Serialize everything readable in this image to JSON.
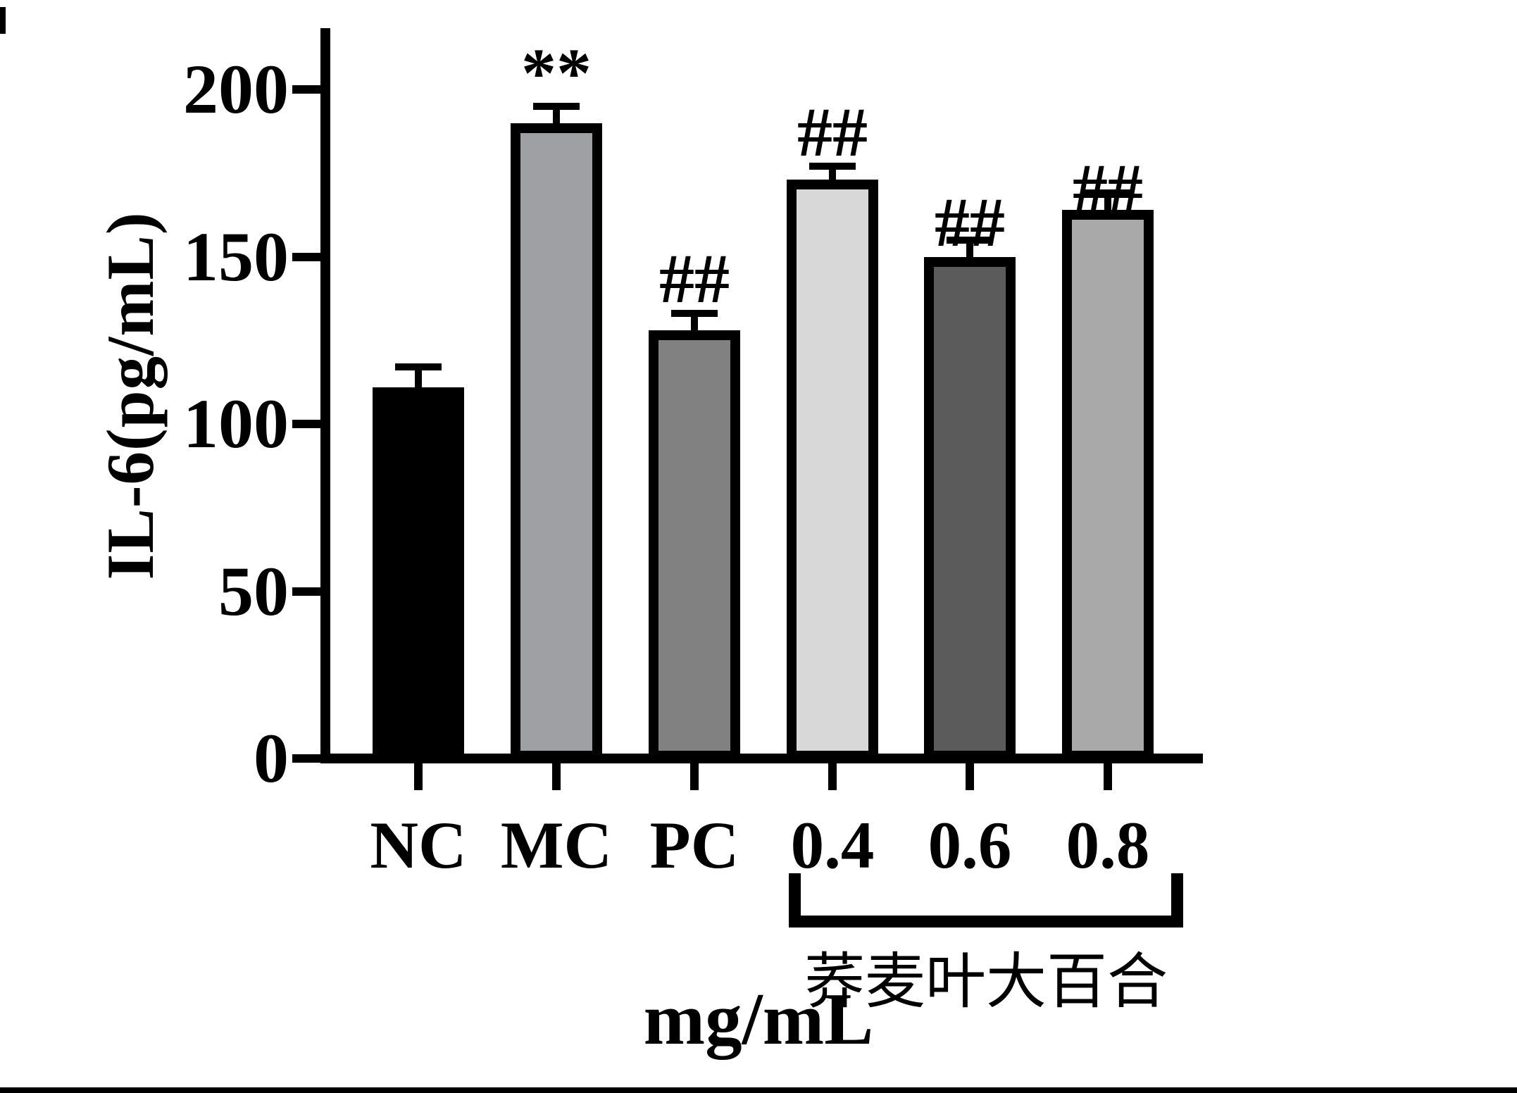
{
  "chart_data": {
    "type": "bar",
    "title": "",
    "categories": [
      "NC",
      "MC",
      "PC",
      "0.4",
      "0.6",
      "0.8"
    ],
    "values": [
      111,
      190,
      128,
      173,
      150,
      164
    ],
    "errors": [
      6,
      5,
      5,
      4,
      5,
      5
    ],
    "annotations": [
      "",
      "**",
      "##",
      "##",
      "##",
      "##"
    ],
    "bar_colors": [
      "#000000",
      "#9fa0a4",
      "#818181",
      "#d8d8d8",
      "#5b5b5b",
      "#a9a9a9"
    ],
    "bar_border_color": "#000000",
    "xlabel": "mg/mL",
    "ylabel": "IL-6(pg/mL)",
    "yticks": [
      0,
      50,
      100,
      150,
      200
    ],
    "ylim": [
      0,
      220
    ],
    "grid": false,
    "legend": "none",
    "bracket": {
      "label": "荞麦叶大百合",
      "covers": [
        "0.4",
        "0.6",
        "0.8"
      ]
    }
  }
}
